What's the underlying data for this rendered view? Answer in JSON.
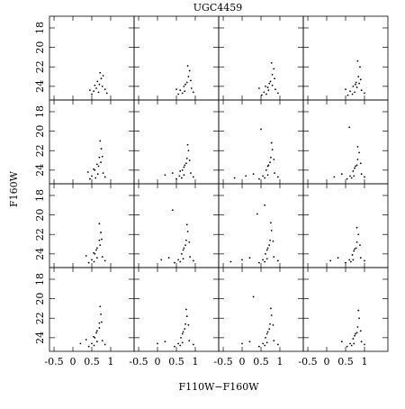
{
  "chart_data": {
    "type": "scatter",
    "title": "UGC4459",
    "xlabel": "F110W−F160W",
    "ylabel": "F160W",
    "xlim": [
      -0.62,
      1.62
    ],
    "ylim": [
      25.4,
      16.8
    ],
    "xticks": [
      -0.5,
      0,
      0.5,
      1
    ],
    "yticks": [
      18,
      20,
      22,
      24
    ],
    "color": "#000000",
    "panels": [
      {
        "x": [
          0.55,
          0.62,
          0.7,
          0.75,
          0.8,
          0.68,
          0.58,
          0.85,
          0.72,
          0.5,
          0.78,
          0.65,
          0.9,
          0.45
        ],
        "y": [
          24.5,
          24.2,
          23.8,
          23.2,
          22.9,
          24.6,
          23.9,
          24.3,
          22.6,
          24.8,
          24.0,
          23.5,
          24.7,
          24.4
        ]
      },
      {
        "x": [
          0.6,
          0.7,
          0.78,
          0.82,
          0.85,
          0.66,
          0.74,
          0.9,
          0.8,
          0.55,
          0.88,
          0.72,
          0.95,
          0.5
        ],
        "y": [
          24.4,
          24.0,
          23.6,
          23.0,
          22.4,
          24.7,
          23.8,
          24.2,
          21.9,
          24.8,
          23.4,
          24.5,
          24.6,
          24.3
        ]
      },
      {
        "x": [
          0.58,
          0.68,
          0.75,
          0.8,
          0.84,
          0.64,
          0.72,
          0.88,
          0.78,
          0.52,
          0.86,
          0.7,
          0.95,
          0.45,
          0.62,
          0.8
        ],
        "y": [
          24.6,
          24.1,
          23.5,
          22.8,
          22.2,
          24.8,
          23.7,
          24.3,
          21.6,
          24.9,
          23.2,
          24.4,
          24.7,
          24.2,
          24.0,
          23.9
        ]
      },
      {
        "x": [
          0.62,
          0.7,
          0.78,
          0.84,
          0.88,
          0.68,
          0.76,
          0.92,
          0.82,
          0.56,
          0.9,
          0.74,
          1.0,
          0.5,
          0.8,
          0.86
        ],
        "y": [
          24.5,
          24.0,
          23.6,
          23.0,
          22.0,
          24.8,
          23.8,
          24.4,
          21.4,
          24.9,
          23.3,
          24.6,
          24.7,
          24.3,
          24.1,
          23.7
        ]
      },
      {
        "x": [
          0.5,
          0.58,
          0.64,
          0.7,
          0.75,
          0.6,
          0.68,
          0.8,
          0.72,
          0.45,
          0.78,
          0.66,
          0.85,
          0.4,
          0.55,
          0.74
        ],
        "y": [
          24.6,
          24.0,
          23.4,
          22.7,
          21.8,
          24.8,
          23.6,
          24.3,
          21.0,
          24.9,
          22.6,
          24.4,
          24.7,
          24.2,
          23.9,
          23.2
        ]
      },
      {
        "x": [
          0.58,
          0.66,
          0.72,
          0.78,
          0.82,
          0.64,
          0.7,
          0.88,
          0.8,
          0.5,
          0.85,
          0.7,
          0.95,
          0.4,
          0.6,
          0.76,
          0.2
        ],
        "y": [
          24.6,
          24.0,
          23.5,
          22.8,
          22.0,
          24.8,
          23.7,
          24.3,
          21.4,
          24.9,
          23.0,
          24.5,
          24.7,
          24.3,
          24.1,
          23.3,
          24.5
        ]
      },
      {
        "x": [
          0.55,
          0.64,
          0.7,
          0.76,
          0.8,
          0.6,
          0.68,
          0.86,
          0.78,
          0.45,
          0.84,
          0.68,
          0.95,
          0.3,
          0.1,
          0.74,
          -0.2,
          0.5
        ],
        "y": [
          24.6,
          24.0,
          23.5,
          22.7,
          21.9,
          24.8,
          23.6,
          24.3,
          21.2,
          24.9,
          22.9,
          24.5,
          24.7,
          24.4,
          24.6,
          23.2,
          24.8,
          19.8
        ]
      },
      {
        "x": [
          0.62,
          0.7,
          0.76,
          0.82,
          0.86,
          0.66,
          0.74,
          0.92,
          0.82,
          0.54,
          0.9,
          0.72,
          1.0,
          0.4,
          0.2,
          0.8,
          0.6
        ],
        "y": [
          24.6,
          24.1,
          23.6,
          22.9,
          22.2,
          24.8,
          23.8,
          24.4,
          21.6,
          24.9,
          23.3,
          24.6,
          24.7,
          24.4,
          24.7,
          23.5,
          19.6
        ]
      },
      {
        "x": [
          0.5,
          0.58,
          0.64,
          0.7,
          0.74,
          0.56,
          0.62,
          0.78,
          0.7,
          0.42,
          0.76,
          0.64,
          0.85,
          0.35,
          0.55,
          0.72
        ],
        "y": [
          24.6,
          24.0,
          23.4,
          22.6,
          21.8,
          24.8,
          23.6,
          24.3,
          20.9,
          24.9,
          22.5,
          24.4,
          24.7,
          24.2,
          23.9,
          23.1
        ]
      },
      {
        "x": [
          0.55,
          0.64,
          0.7,
          0.76,
          0.8,
          0.6,
          0.68,
          0.86,
          0.78,
          0.45,
          0.84,
          0.68,
          0.95,
          0.3,
          0.1,
          0.74,
          0.4
        ],
        "y": [
          24.6,
          24.0,
          23.4,
          22.6,
          21.7,
          24.8,
          23.6,
          24.3,
          21.0,
          24.9,
          22.8,
          24.5,
          24.7,
          24.4,
          24.6,
          23.1,
          19.5
        ]
      },
      {
        "x": [
          0.55,
          0.62,
          0.68,
          0.74,
          0.78,
          0.6,
          0.66,
          0.84,
          0.76,
          0.45,
          0.82,
          0.66,
          0.95,
          0.2,
          0.0,
          0.72,
          -0.3,
          0.4,
          0.6
        ],
        "y": [
          24.6,
          24.0,
          23.4,
          22.6,
          21.6,
          24.8,
          23.6,
          24.3,
          20.8,
          24.9,
          22.7,
          24.5,
          24.7,
          24.4,
          24.6,
          23.1,
          24.8,
          19.9,
          19.0
        ]
      },
      {
        "x": [
          0.6,
          0.68,
          0.74,
          0.8,
          0.84,
          0.64,
          0.72,
          0.9,
          0.8,
          0.5,
          0.88,
          0.7,
          1.0,
          0.3,
          0.1,
          0.78
        ],
        "y": [
          24.6,
          24.1,
          23.5,
          22.8,
          22.0,
          24.8,
          23.7,
          24.4,
          21.3,
          24.9,
          23.1,
          24.6,
          24.7,
          24.4,
          24.7,
          23.4
        ]
      },
      {
        "x": [
          0.5,
          0.58,
          0.64,
          0.7,
          0.74,
          0.56,
          0.62,
          0.78,
          0.72,
          0.42,
          0.76,
          0.64,
          0.85,
          0.35,
          0.55,
          0.7,
          0.2
        ],
        "y": [
          24.6,
          24.0,
          23.3,
          22.5,
          21.6,
          24.8,
          23.5,
          24.3,
          20.8,
          24.9,
          22.4,
          24.4,
          24.7,
          24.2,
          23.9,
          23.0,
          24.6
        ]
      },
      {
        "x": [
          0.55,
          0.62,
          0.68,
          0.74,
          0.78,
          0.6,
          0.66,
          0.84,
          0.76,
          0.45,
          0.82,
          0.66,
          0.95,
          0.2,
          0.0,
          0.72
        ],
        "y": [
          24.6,
          24.0,
          23.4,
          22.6,
          21.8,
          24.8,
          23.6,
          24.3,
          21.1,
          24.9,
          22.7,
          24.5,
          24.7,
          24.4,
          24.6,
          23.1
        ]
      },
      {
        "x": [
          0.55,
          0.62,
          0.68,
          0.74,
          0.78,
          0.6,
          0.66,
          0.84,
          0.76,
          0.45,
          0.82,
          0.66,
          0.95,
          0.2,
          0.0,
          0.72,
          0.3
        ],
        "y": [
          24.6,
          24.0,
          23.4,
          22.6,
          21.7,
          24.8,
          23.6,
          24.3,
          21.0,
          24.9,
          22.7,
          24.5,
          24.7,
          24.4,
          24.6,
          23.1,
          19.8
        ]
      },
      {
        "x": [
          0.62,
          0.7,
          0.76,
          0.82,
          0.86,
          0.66,
          0.74,
          0.92,
          0.84,
          0.54,
          0.9,
          0.72,
          1.0,
          0.4,
          0.8
        ],
        "y": [
          24.6,
          24.1,
          23.6,
          22.9,
          22.0,
          24.8,
          23.8,
          24.4,
          21.2,
          24.9,
          23.3,
          24.6,
          24.7,
          24.4,
          23.5
        ]
      }
    ]
  }
}
